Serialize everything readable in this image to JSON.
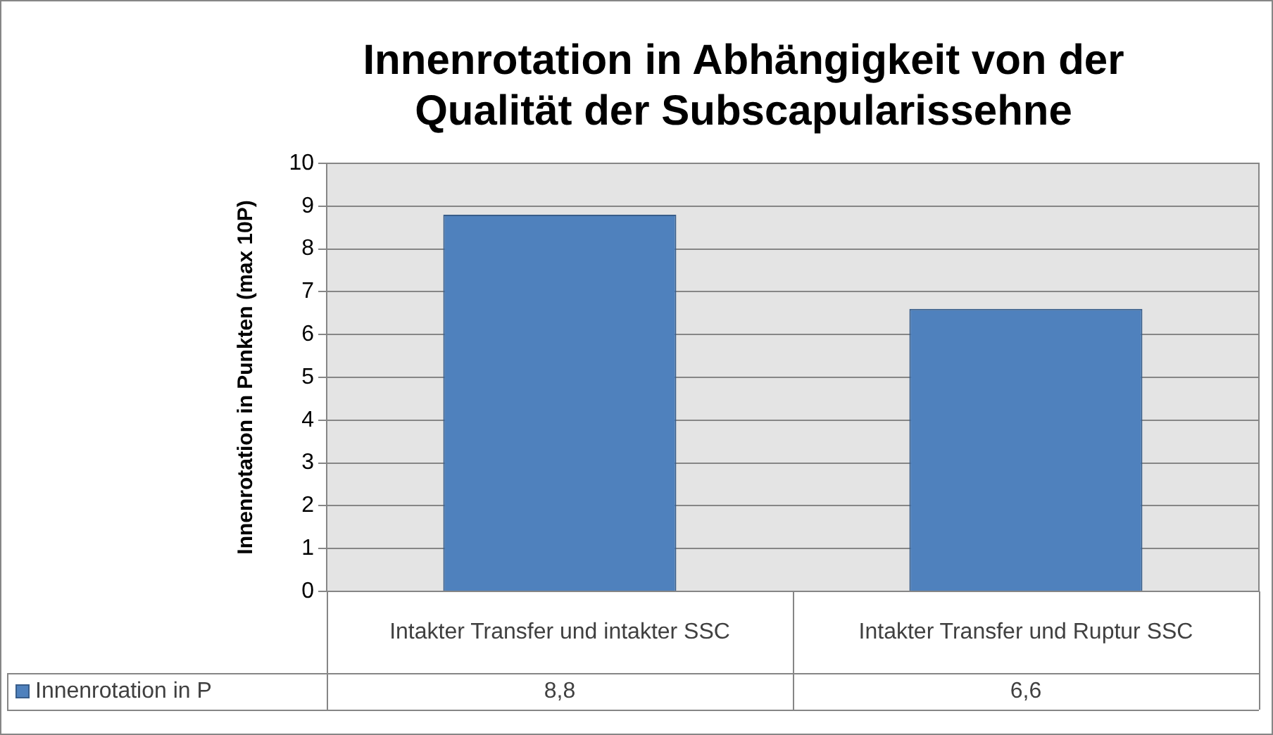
{
  "chart_data": {
    "type": "bar",
    "title": "Innenrotation in Abhängigkeit von der Qualität der Subscapularissehne",
    "ylabel": "Innenrotation in Punkten (max 10P)",
    "categories": [
      "Intakter Transfer und intakter SSC",
      "Intakter Transfer und Ruptur SSC"
    ],
    "series": [
      {
        "name": "Innenrotation in P",
        "color": "#4f81bd",
        "values": [
          8.8,
          6.6
        ],
        "value_labels": [
          "8,8",
          "6,6"
        ]
      }
    ],
    "ylim": [
      0,
      10
    ],
    "yticks": [
      0,
      1,
      2,
      3,
      4,
      5,
      6,
      7,
      8,
      9,
      10
    ],
    "grid": "y",
    "legend": "bottom left"
  }
}
